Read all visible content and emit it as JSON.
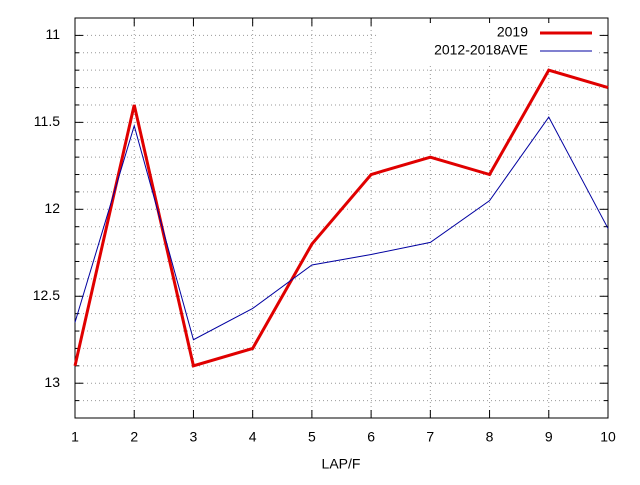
{
  "chart_data": {
    "type": "line",
    "xlabel": "LAP/F",
    "x": [
      1,
      2,
      3,
      4,
      5,
      6,
      7,
      8,
      9,
      10
    ],
    "series": [
      {
        "name": "2019",
        "color": "#e00000",
        "width": 3,
        "values": [
          12.9,
          11.4,
          12.9,
          12.8,
          12.2,
          11.8,
          11.7,
          11.8,
          11.2,
          11.3
        ]
      },
      {
        "name": "2012-2018AVE",
        "color": "#0000a0",
        "width": 1,
        "values": [
          12.65,
          11.52,
          12.75,
          12.57,
          12.32,
          12.26,
          12.19,
          11.95,
          11.47,
          12.11
        ]
      }
    ],
    "xlim": [
      1,
      10
    ],
    "xticks": [
      1,
      2,
      3,
      4,
      5,
      6,
      7,
      8,
      9,
      10
    ],
    "ylim": [
      13.2,
      10.9
    ],
    "yticks": [
      11,
      11.5,
      12,
      12.5,
      13
    ],
    "yminorticks": [
      11.1,
      11.2,
      11.3,
      11.4,
      11.6,
      11.7,
      11.8,
      11.9,
      12.1,
      12.2,
      12.3,
      12.4,
      12.6,
      12.7,
      12.8,
      12.9,
      13.1
    ],
    "grid": true,
    "legend": "top-right"
  }
}
